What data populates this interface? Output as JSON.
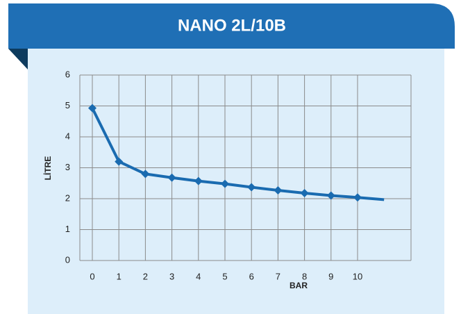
{
  "chart_data": {
    "type": "line",
    "title": "NANO 2L/10B",
    "x_label": "BAR",
    "y_label": "LİTRE",
    "categories": [
      "0",
      "1",
      "2",
      "3",
      "4",
      "5",
      "6",
      "7",
      "8",
      "9",
      "10",
      null
    ],
    "series": [
      {
        "name": "NANO 2L/10B",
        "color": "#1a6bb0",
        "values": [
          4.93,
          3.2,
          2.8,
          2.68,
          2.57,
          2.48,
          2.37,
          2.27,
          2.18,
          2.1,
          2.04,
          1.97
        ]
      }
    ],
    "ylim": [
      0,
      6
    ],
    "yticks": [
      0,
      1,
      2,
      3,
      4,
      5,
      6
    ],
    "grid": true
  }
}
